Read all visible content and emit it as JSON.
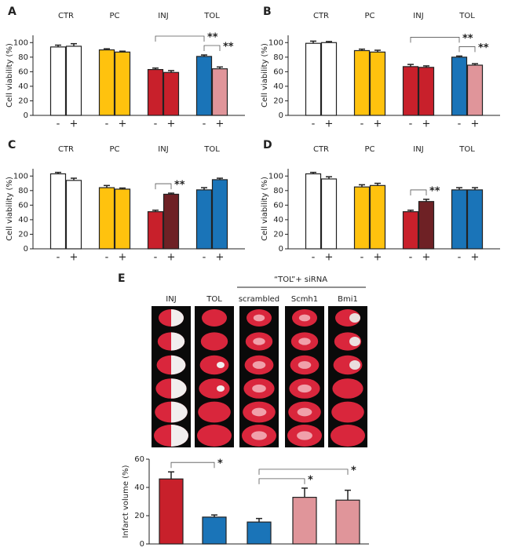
{
  "chart_data": [
    {
      "type": "bar",
      "panel": "A",
      "groups": [
        "CTR",
        "PC",
        "INJ",
        "TOL"
      ],
      "categories": [
        "-",
        "+",
        "-",
        "+",
        "-",
        "+",
        "-",
        "+"
      ],
      "values": [
        94,
        95,
        90,
        87,
        63,
        59,
        81,
        64
      ],
      "errors": [
        2.5,
        3.5,
        1.5,
        1.2,
        2,
        2.5,
        2,
        2.5
      ],
      "colors": [
        "#ffffff",
        "#ffffff",
        "#ffc20e",
        "#ffc20e",
        "#c8202b",
        "#c8202b",
        "#1a74b8",
        "#e0959a"
      ],
      "ylabel": "Cell viability (%)",
      "ylim": [
        0,
        110
      ],
      "yticks": [
        0,
        20,
        40,
        60,
        80,
        100
      ],
      "annotations": [
        {
          "label": "**",
          "between": [
            6,
            7
          ]
        },
        {
          "label": "**",
          "between": [
            4,
            6
          ]
        }
      ]
    },
    {
      "type": "bar",
      "panel": "B",
      "groups": [
        "CTR",
        "PC",
        "INJ",
        "TOL"
      ],
      "categories": [
        "-",
        "+",
        "-",
        "+",
        "-",
        "+",
        "-",
        "+"
      ],
      "values": [
        99,
        100,
        89,
        87,
        67,
        66,
        80,
        69
      ],
      "errors": [
        3,
        1.5,
        2,
        2.5,
        3,
        2,
        1.5,
        2
      ],
      "colors": [
        "#ffffff",
        "#ffffff",
        "#ffc20e",
        "#ffc20e",
        "#c8202b",
        "#c8202b",
        "#1a74b8",
        "#e0959a"
      ],
      "ylabel": "Cell viability (%)",
      "ylim": [
        0,
        110
      ],
      "yticks": [
        0,
        20,
        40,
        60,
        80,
        100
      ],
      "annotations": [
        {
          "label": "**",
          "between": [
            6,
            7
          ]
        },
        {
          "label": "**",
          "between": [
            4,
            6
          ]
        }
      ]
    },
    {
      "type": "bar",
      "panel": "C",
      "groups": [
        "CTR",
        "PC",
        "INJ",
        "TOL"
      ],
      "categories": [
        "-",
        "+",
        "-",
        "+",
        "-",
        "+",
        "-",
        "+"
      ],
      "values": [
        103,
        94,
        84,
        82,
        51,
        75,
        81,
        95
      ],
      "errors": [
        2,
        3,
        3,
        1.5,
        2,
        1.5,
        3,
        2
      ],
      "colors": [
        "#ffffff",
        "#ffffff",
        "#ffc20e",
        "#ffc20e",
        "#c8202b",
        "#6e2125",
        "#1a74b8",
        "#1a74b8"
      ],
      "ylabel": "Cell viability (%)",
      "ylim": [
        0,
        110
      ],
      "yticks": [
        0,
        20,
        40,
        60,
        80,
        100
      ],
      "annotations": [
        {
          "label": "**",
          "between": [
            4,
            5
          ]
        }
      ]
    },
    {
      "type": "bar",
      "panel": "D",
      "groups": [
        "CTR",
        "PC",
        "INJ",
        "TOL"
      ],
      "categories": [
        "-",
        "+",
        "-",
        "+",
        "-",
        "+",
        "-",
        "+"
      ],
      "values": [
        103,
        96,
        85,
        87,
        51,
        65,
        81,
        81
      ],
      "errors": [
        2,
        3,
        3,
        3,
        2,
        3,
        3,
        3
      ],
      "colors": [
        "#ffffff",
        "#ffffff",
        "#ffc20e",
        "#ffc20e",
        "#c8202b",
        "#6e2125",
        "#1a74b8",
        "#1a74b8"
      ],
      "ylabel": "Cell viability (%)",
      "ylim": [
        0,
        110
      ],
      "yticks": [
        0,
        20,
        40,
        60,
        80,
        100
      ],
      "annotations": [
        {
          "label": "**",
          "between": [
            4,
            5
          ]
        }
      ]
    },
    {
      "type": "bar",
      "panel": "E",
      "header": "“TOL”+ siRNA",
      "categories": [
        "INJ",
        "TOL",
        "scrambled",
        "Scmh1",
        "Bmi1"
      ],
      "values": [
        46,
        19,
        15.5,
        33,
        31
      ],
      "errors": [
        5,
        1.5,
        2.5,
        6.5,
        7
      ],
      "colors": [
        "#c8202b",
        "#1a74b8",
        "#1a74b8",
        "#e0959a",
        "#e0959a"
      ],
      "ylabel": "Infarct volume  (%)",
      "ylim": [
        0,
        60
      ],
      "yticks": [
        0,
        20,
        40,
        60
      ],
      "annotations": [
        {
          "label": "*",
          "between": [
            0,
            1
          ]
        },
        {
          "label": "*",
          "between": [
            2,
            3
          ]
        },
        {
          "label": "*",
          "between": [
            2,
            4
          ]
        }
      ]
    }
  ]
}
